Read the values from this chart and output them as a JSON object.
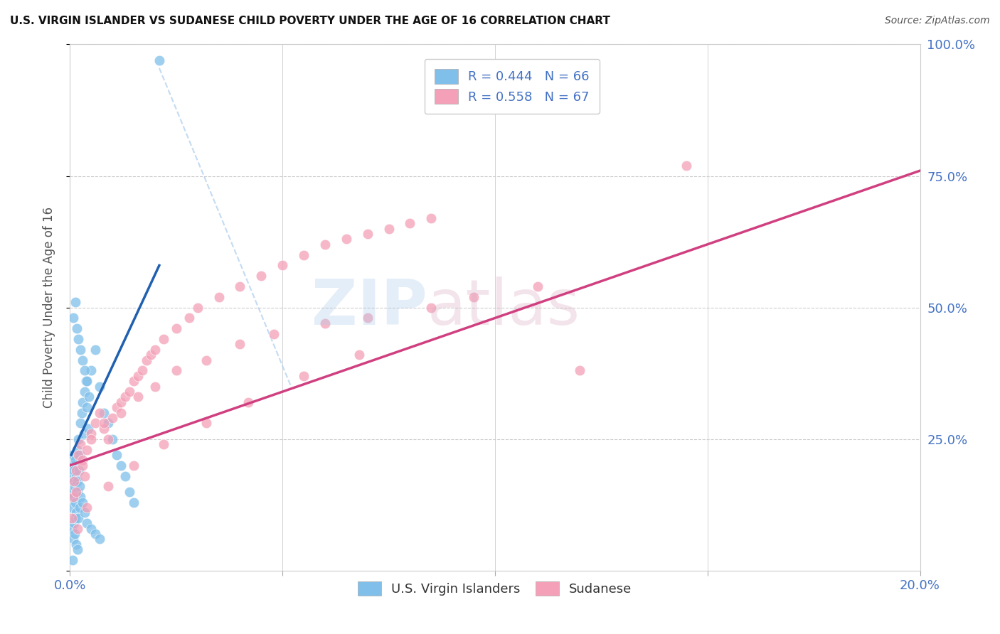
{
  "title": "U.S. VIRGIN ISLANDER VS SUDANESE CHILD POVERTY UNDER THE AGE OF 16 CORRELATION CHART",
  "source": "Source: ZipAtlas.com",
  "ylabel": "Child Poverty Under the Age of 16",
  "xlim": [
    0.0,
    0.2
  ],
  "ylim": [
    0.0,
    1.0
  ],
  "legend_r1_text": "R = 0.444   N = 66",
  "legend_r2_text": "R = 0.558   N = 67",
  "legend_label1": "U.S. Virgin Islanders",
  "legend_label2": "Sudanese",
  "blue_color": "#7fbfea",
  "pink_color": "#f4a0b8",
  "blue_line_color": "#2060b0",
  "pink_line_color": "#d04080",
  "axis_tick_color": "#4472c4",
  "grid_color": "#cccccc",
  "blue_line_x0": 0.0003,
  "blue_line_x1": 0.021,
  "blue_line_y0": 0.22,
  "blue_line_y1": 0.58,
  "pink_line_x0": 0.0,
  "pink_line_x1": 0.2,
  "pink_line_y0": 0.2,
  "pink_line_y1": 0.76,
  "dash_line_x0": 0.021,
  "dash_line_x1": 0.052,
  "dash_line_y0": 0.955,
  "dash_line_y1": 0.35,
  "blue_scatter_x": [
    0.0003,
    0.0004,
    0.0005,
    0.0006,
    0.0007,
    0.0008,
    0.0009,
    0.001,
    0.0011,
    0.0012,
    0.0013,
    0.0014,
    0.0015,
    0.0016,
    0.0017,
    0.0018,
    0.002,
    0.0021,
    0.0022,
    0.0023,
    0.0025,
    0.0027,
    0.003,
    0.0032,
    0.0035,
    0.0038,
    0.004,
    0.0043,
    0.0045,
    0.005,
    0.006,
    0.007,
    0.008,
    0.009,
    0.01,
    0.011,
    0.012,
    0.013,
    0.014,
    0.015,
    0.0005,
    0.0007,
    0.0009,
    0.0011,
    0.0013,
    0.0015,
    0.0018,
    0.002,
    0.0022,
    0.0025,
    0.003,
    0.0035,
    0.004,
    0.005,
    0.006,
    0.007,
    0.0008,
    0.0012,
    0.0016,
    0.002,
    0.0025,
    0.003,
    0.0035,
    0.021,
    0.0006,
    0.004
  ],
  "blue_scatter_y": [
    0.15,
    0.18,
    0.12,
    0.22,
    0.2,
    0.17,
    0.14,
    0.19,
    0.16,
    0.13,
    0.21,
    0.11,
    0.18,
    0.23,
    0.15,
    0.17,
    0.25,
    0.19,
    0.22,
    0.16,
    0.28,
    0.3,
    0.32,
    0.26,
    0.34,
    0.36,
    0.31,
    0.27,
    0.33,
    0.38,
    0.42,
    0.35,
    0.3,
    0.28,
    0.25,
    0.22,
    0.2,
    0.18,
    0.15,
    0.13,
    0.08,
    0.06,
    0.09,
    0.07,
    0.1,
    0.05,
    0.04,
    0.1,
    0.12,
    0.14,
    0.13,
    0.11,
    0.09,
    0.08,
    0.07,
    0.06,
    0.48,
    0.51,
    0.46,
    0.44,
    0.42,
    0.4,
    0.38,
    0.97,
    0.02,
    0.36
  ],
  "pink_scatter_x": [
    0.0005,
    0.0008,
    0.001,
    0.0015,
    0.002,
    0.0025,
    0.003,
    0.0035,
    0.004,
    0.005,
    0.006,
    0.007,
    0.008,
    0.009,
    0.01,
    0.011,
    0.012,
    0.013,
    0.014,
    0.015,
    0.016,
    0.017,
    0.018,
    0.019,
    0.02,
    0.022,
    0.025,
    0.028,
    0.03,
    0.035,
    0.04,
    0.045,
    0.05,
    0.055,
    0.06,
    0.065,
    0.07,
    0.075,
    0.08,
    0.085,
    0.0015,
    0.003,
    0.005,
    0.008,
    0.012,
    0.016,
    0.02,
    0.025,
    0.032,
    0.04,
    0.048,
    0.06,
    0.07,
    0.085,
    0.095,
    0.11,
    0.0018,
    0.004,
    0.009,
    0.015,
    0.022,
    0.032,
    0.042,
    0.055,
    0.068,
    0.12,
    0.145
  ],
  "pink_scatter_y": [
    0.1,
    0.14,
    0.17,
    0.19,
    0.22,
    0.24,
    0.21,
    0.18,
    0.23,
    0.26,
    0.28,
    0.3,
    0.27,
    0.25,
    0.29,
    0.31,
    0.32,
    0.33,
    0.34,
    0.36,
    0.37,
    0.38,
    0.4,
    0.41,
    0.42,
    0.44,
    0.46,
    0.48,
    0.5,
    0.52,
    0.54,
    0.56,
    0.58,
    0.6,
    0.62,
    0.63,
    0.64,
    0.65,
    0.66,
    0.67,
    0.15,
    0.2,
    0.25,
    0.28,
    0.3,
    0.33,
    0.35,
    0.38,
    0.4,
    0.43,
    0.45,
    0.47,
    0.48,
    0.5,
    0.52,
    0.54,
    0.08,
    0.12,
    0.16,
    0.2,
    0.24,
    0.28,
    0.32,
    0.37,
    0.41,
    0.38,
    0.77
  ]
}
